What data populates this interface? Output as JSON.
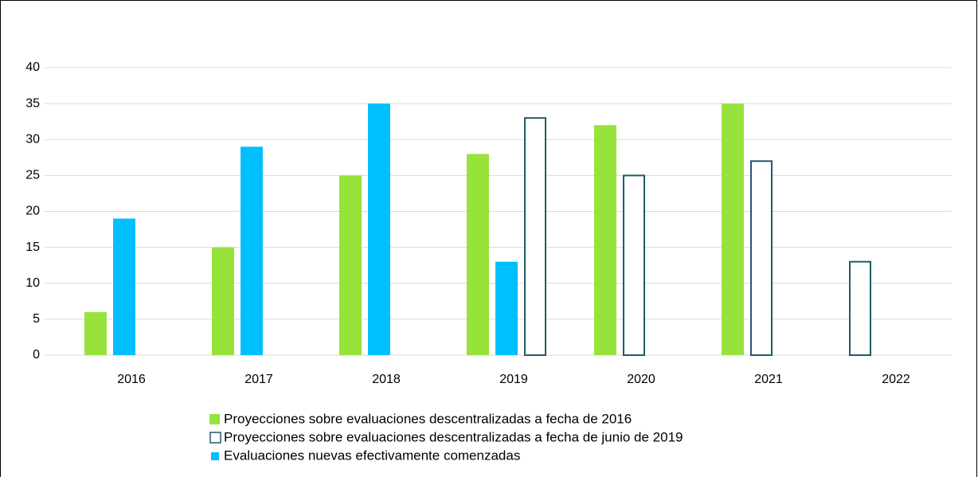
{
  "chart_data": {
    "type": "bar",
    "categories": [
      "2016",
      "2017",
      "2018",
      "2019",
      "2020",
      "2021",
      "2022"
    ],
    "series": [
      {
        "name": "Proyecciones sobre evaluaciones descentralizadas a fecha de 2016",
        "color": "#98e23c",
        "values": [
          6,
          15,
          25,
          28,
          32,
          35,
          null
        ]
      },
      {
        "name": "Evaluaciones nuevas efectivamente comenzadas",
        "color": "#00bfff",
        "values": [
          19,
          29,
          35,
          13,
          null,
          null,
          null
        ]
      },
      {
        "name": "Proyecciones sobre evaluaciones descentralizadas a fecha de junio de 2019",
        "color": "#1f5c63",
        "outline": true,
        "values": [
          null,
          null,
          null,
          33,
          25,
          27,
          13
        ]
      }
    ],
    "ylim": [
      0,
      40
    ],
    "yticks": [
      0,
      5,
      10,
      15,
      20,
      25,
      30,
      35,
      40
    ],
    "grid": true
  }
}
